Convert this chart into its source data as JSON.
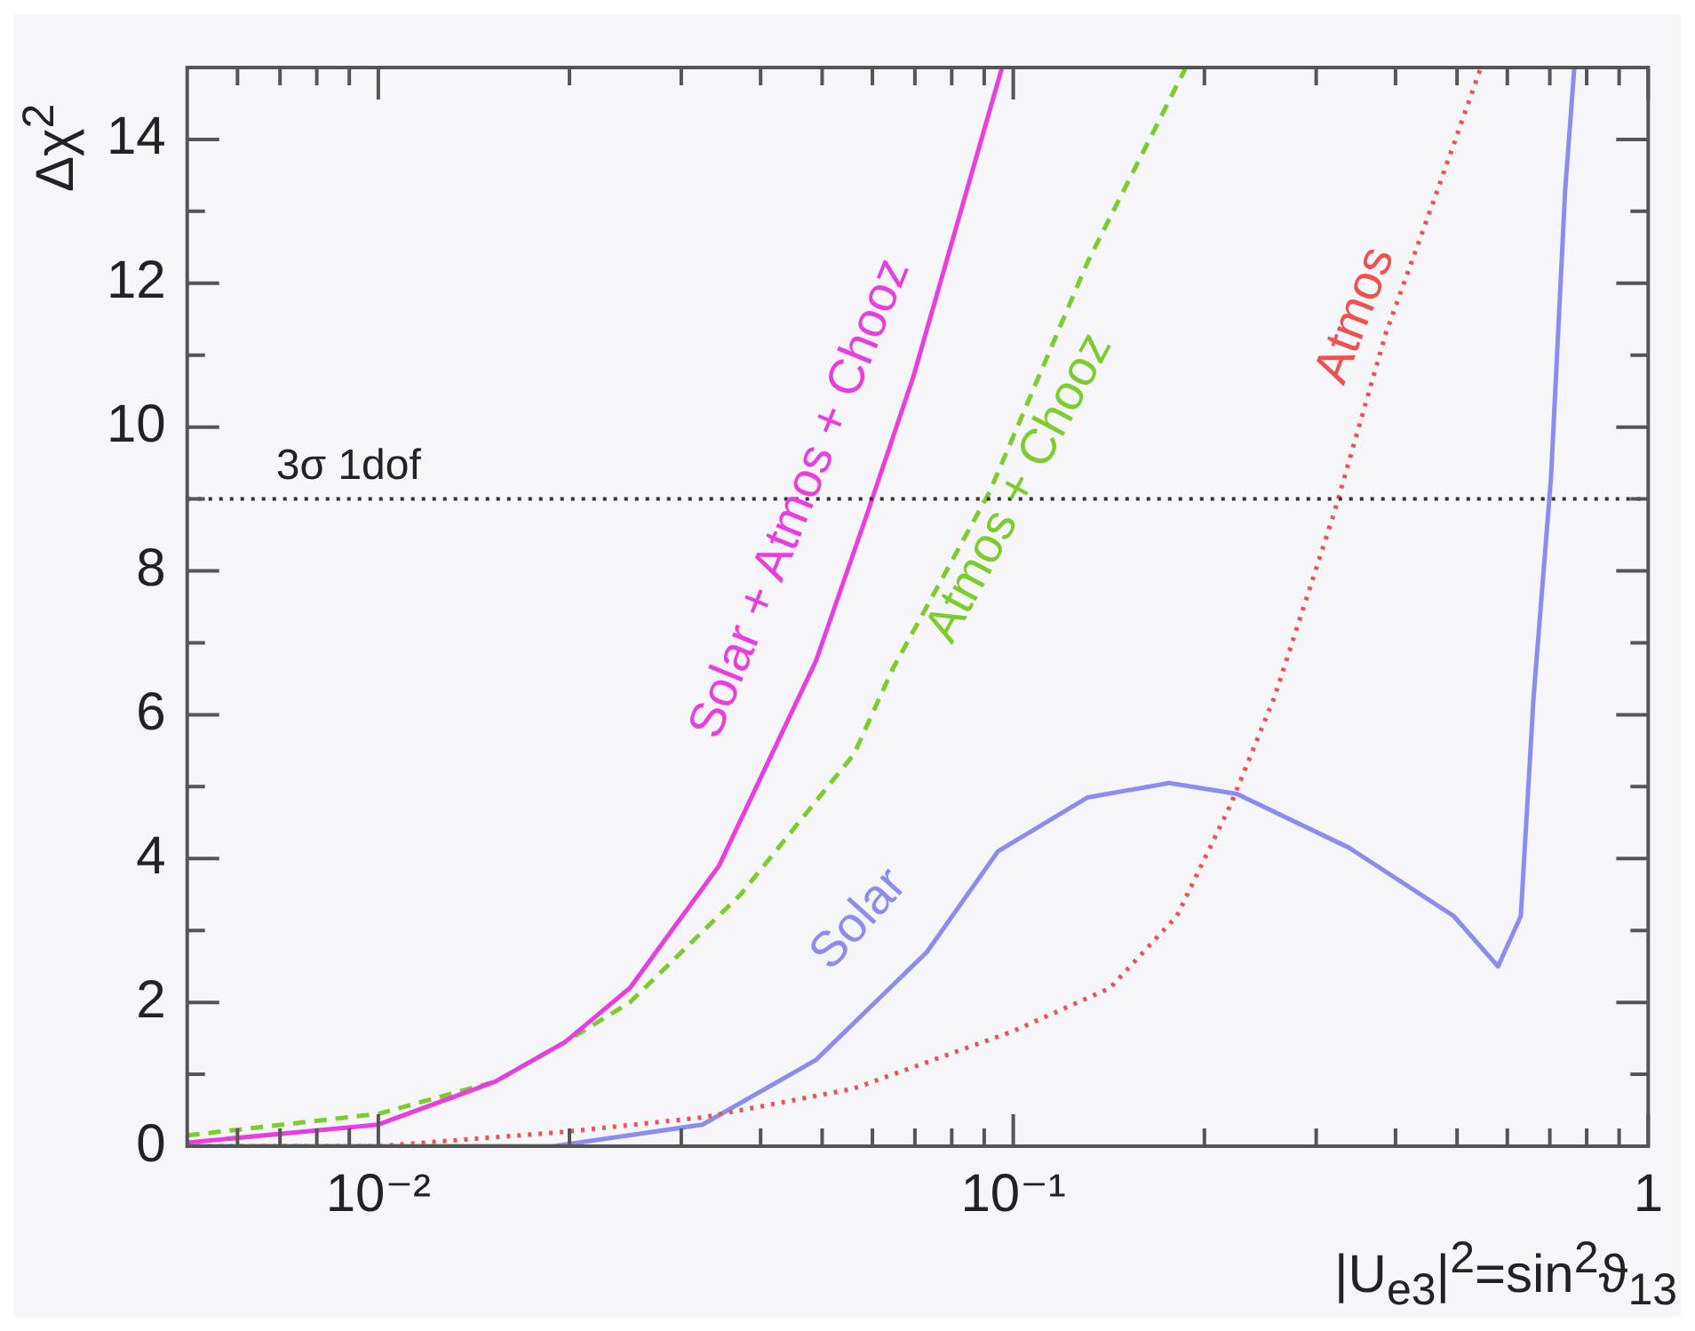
{
  "chart_data": {
    "type": "line",
    "xlabel": "|U$_{e3}$|$^{2}$=sin$^{2}$ϑ$_{13}$",
    "ylabel": "Δχ$^{2}$",
    "log": "x",
    "grid": false,
    "legend": false,
    "marker": "none",
    "xlim": [
      0.005,
      1
    ],
    "ylim": [
      0,
      15
    ],
    "xticks": [
      {
        "value": 0.006,
        "label": null
      },
      {
        "value": 0.007,
        "label": null
      },
      {
        "value": 0.008,
        "label": null
      },
      {
        "value": 0.009,
        "label": null
      },
      {
        "value": 0.01,
        "label": "10⁻²"
      },
      {
        "value": 0.02,
        "label": null
      },
      {
        "value": 0.03,
        "label": null
      },
      {
        "value": 0.04,
        "label": null
      },
      {
        "value": 0.05,
        "label": null
      },
      {
        "value": 0.06,
        "label": null
      },
      {
        "value": 0.07,
        "label": null
      },
      {
        "value": 0.08,
        "label": null
      },
      {
        "value": 0.09,
        "label": null
      },
      {
        "value": 0.1,
        "label": "10⁻¹"
      },
      {
        "value": 0.2,
        "label": null
      },
      {
        "value": 0.3,
        "label": null
      },
      {
        "value": 0.4,
        "label": null
      },
      {
        "value": 0.5,
        "label": null
      },
      {
        "value": 0.6,
        "label": null
      },
      {
        "value": 0.7,
        "label": null
      },
      {
        "value": 0.8,
        "label": null
      },
      {
        "value": 0.9,
        "label": null
      },
      {
        "value": 1,
        "label": "1"
      }
    ],
    "yticks": [
      0,
      {
        "value": 1,
        "label": null
      },
      2,
      {
        "value": 3,
        "label": null
      },
      4,
      {
        "value": 5,
        "label": null
      },
      6,
      {
        "value": 7,
        "label": null
      },
      8,
      {
        "value": 9,
        "label": null
      },
      10,
      {
        "value": 11,
        "label": null
      },
      12,
      {
        "value": 13,
        "label": null
      },
      14
    ],
    "ref_lines": [
      {
        "axis": "y",
        "value": 9,
        "label": "3σ 1dof",
        "color": "#333333",
        "line_style": "dotted"
      }
    ],
    "series": [
      {
        "name": "Solar + Atmos + Chooz",
        "color": "#e83ee0",
        "line_style": "solid",
        "x": [
          0.005,
          0.01,
          0.0153,
          0.0197,
          0.0249,
          0.0344,
          0.0489,
          0.0589,
          0.0696,
          0.096
        ],
        "values": [
          0.05,
          0.3,
          0.9,
          1.45,
          2.2,
          3.9,
          6.75,
          8.8,
          10.7,
          15
        ]
      },
      {
        "name": "Atmos + Chooz",
        "color": "#7ccc2c",
        "line_style": "dashed",
        "x": [
          0.005,
          0.01,
          0.0153,
          0.0197,
          0.0249,
          0.0372,
          0.0561,
          0.0647,
          0.0918,
          0.131,
          0.187
        ],
        "values": [
          0.15,
          0.45,
          0.9,
          1.45,
          2.0,
          3.5,
          5.45,
          6.65,
          9.1,
          12.3,
          15
        ]
      },
      {
        "name": "Atmos",
        "color": "#f05050",
        "line_style": "dotted",
        "x": [
          0.005,
          0.01,
          0.0197,
          0.0324,
          0.056,
          0.1,
          0.142,
          0.181,
          0.22,
          0.258,
          0.32,
          0.386,
          0.466,
          0.545
        ],
        "values": [
          0,
          0,
          0.2,
          0.4,
          0.8,
          1.6,
          2.2,
          3.2,
          4.75,
          6.25,
          8.8,
          11.3,
          13.3,
          15
        ]
      },
      {
        "name": "Solar",
        "color": "#8c8cf0",
        "line_style": "solid",
        "x": [
          0.005,
          0.0189,
          0.0324,
          0.0489,
          0.0731,
          0.0946,
          0.131,
          0.176,
          0.225,
          0.338,
          0.494,
          0.58,
          0.63,
          0.66,
          0.703,
          0.74,
          0.765
        ],
        "values": [
          0,
          0,
          0.3,
          1.2,
          2.7,
          4.1,
          4.85,
          5.05,
          4.9,
          4.15,
          3.2,
          2.5,
          3.2,
          6.25,
          9.3,
          13.3,
          15
        ]
      }
    ]
  }
}
